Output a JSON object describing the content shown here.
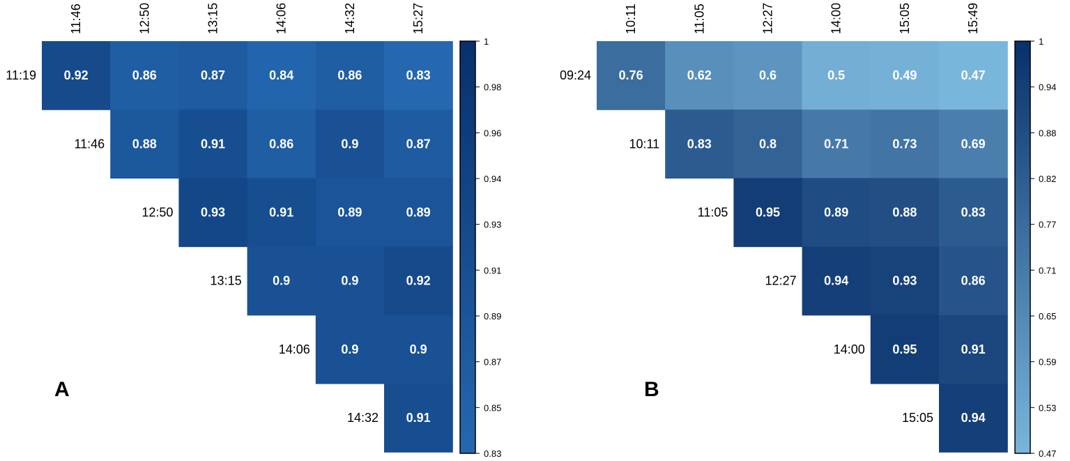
{
  "chart_data": [
    {
      "type": "heatmap",
      "panel_label": "A",
      "columns": [
        "11:46",
        "12:50",
        "13:15",
        "14:06",
        "14:32",
        "15:27"
      ],
      "rows": [
        "11:19",
        "11:46",
        "12:50",
        "13:15",
        "14:06",
        "14:32"
      ],
      "values": [
        [
          0.92,
          0.86,
          0.87,
          0.84,
          0.86,
          0.83
        ],
        [
          null,
          0.88,
          0.91,
          0.86,
          0.9,
          0.87
        ],
        [
          null,
          null,
          0.93,
          0.91,
          0.89,
          0.89
        ],
        [
          null,
          null,
          null,
          0.9,
          0.9,
          0.92
        ],
        [
          null,
          null,
          null,
          null,
          0.9,
          0.9
        ],
        [
          null,
          null,
          null,
          null,
          null,
          0.91
        ]
      ],
      "colorbar": {
        "min": 0.83,
        "max": 1,
        "min_color": "#2568b0",
        "max_color": "#08306b",
        "ticks": [
          "1",
          "0.98",
          "0.96",
          "0.94",
          "0.93",
          "0.91",
          "0.89",
          "0.87",
          "0.85",
          "0.83"
        ]
      }
    },
    {
      "type": "heatmap",
      "panel_label": "B",
      "columns": [
        "10:11",
        "11:05",
        "12:27",
        "14:00",
        "15:05",
        "15:49"
      ],
      "rows": [
        "09:24",
        "10:11",
        "11:05",
        "12:27",
        "14:00",
        "15:05"
      ],
      "values": [
        [
          0.76,
          0.62,
          0.6,
          0.5,
          0.49,
          0.47
        ],
        [
          null,
          0.83,
          0.8,
          0.71,
          0.73,
          0.69
        ],
        [
          null,
          null,
          0.95,
          0.89,
          0.88,
          0.83
        ],
        [
          null,
          null,
          null,
          0.94,
          0.93,
          0.86
        ],
        [
          null,
          null,
          null,
          null,
          0.95,
          0.91
        ],
        [
          null,
          null,
          null,
          null,
          null,
          0.94
        ]
      ],
      "colorbar": {
        "min": 0.47,
        "max": 1,
        "min_color": "#79b6db",
        "max_color": "#08306b",
        "ticks": [
          "1",
          "0.94",
          "0.88",
          "0.82",
          "0.77",
          "0.71",
          "0.65",
          "0.59",
          "0.53",
          "0.47"
        ]
      }
    }
  ]
}
